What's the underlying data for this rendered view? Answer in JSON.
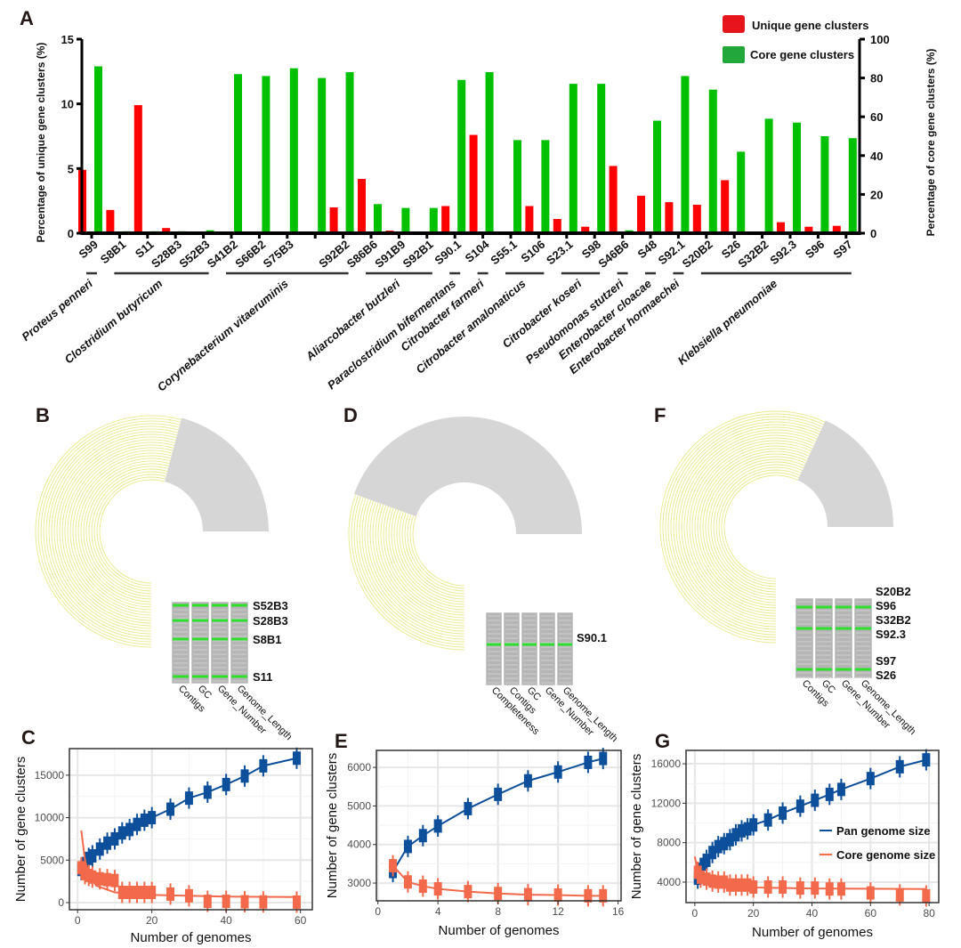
{
  "panel_letters": {
    "A": "A",
    "B": "B",
    "C": "C",
    "D": "D",
    "E": "E",
    "F": "F",
    "G": "G"
  },
  "chart_data": [
    {
      "panel": "A",
      "type": "bar",
      "categories": [
        "S99",
        "S8B1",
        "S11",
        "S28B3",
        "S52B3",
        "S41B2",
        "S66B2",
        "S75B3",
        "",
        "S92B2",
        "S86B6",
        "S91B9",
        "S92B1",
        "S90.1",
        "S104",
        "S55.1",
        "S106",
        "S23.1",
        "S98",
        "S46B6",
        "S48",
        "S92.1",
        "S20B2",
        "S26",
        "S32B2",
        "S92.3",
        "S96",
        "S97"
      ],
      "series": [
        {
          "name": "Unique gene clusters",
          "axis": "left",
          "color": "#ff0000",
          "values": [
            4.9,
            1.8,
            9.9,
            0.4,
            0,
            0.1,
            0,
            0,
            0,
            2.0,
            4.2,
            0.2,
            0.1,
            2.1,
            7.6,
            0.05,
            2.1,
            1.1,
            0.5,
            5.2,
            2.9,
            2.4,
            2.2,
            4.1,
            0,
            0.85,
            0.5,
            0.57
          ]
        },
        {
          "name": "Core gene clusters",
          "axis": "right",
          "color": "#00c000",
          "values": [
            86,
            1,
            1,
            1,
            1.5,
            82,
            81,
            85,
            80,
            83,
            15,
            13,
            13,
            79,
            83,
            48,
            48,
            77,
            77,
            1.5,
            58,
            81,
            74,
            42,
            59,
            57,
            50,
            49
          ]
        }
      ],
      "ylabel": "Percentage of unique gene clusters (%)",
      "y2label": "Percentage of core gene clusters (%)",
      "ylim": [
        0,
        15
      ],
      "yticks": [
        0,
        5,
        10,
        15
      ],
      "y2lim": [
        0,
        100
      ],
      "y2ticks": [
        0,
        20,
        40,
        60,
        80,
        100
      ],
      "legend_position": "top-right",
      "species_groups": [
        {
          "name": "Proteus penneri",
          "from": 0,
          "to": 0
        },
        {
          "name": "Clostridium butyricum",
          "from": 1,
          "to": 4
        },
        {
          "name": "Corynebacterium vitaeruminis",
          "from": 5,
          "to": 9
        },
        {
          "name": "Aliarcobacter butzleri",
          "from": 10,
          "to": 12
        },
        {
          "name": "Paraclostridium bifermentans",
          "from": 13,
          "to": 13
        },
        {
          "name": "Citrobacter farmeri",
          "from": 14,
          "to": 14
        },
        {
          "name": "Citrobacter amalonaticus",
          "from": 15,
          "to": 16
        },
        {
          "name": "Citrobacter koseri",
          "from": 17,
          "to": 18
        },
        {
          "name": "Pseudomonas stutzeri",
          "from": 19,
          "to": 19
        },
        {
          "name": "Enterobacter cloacae",
          "from": 20,
          "to": 20
        },
        {
          "name": "Enterobacter hormaechei",
          "from": 21,
          "to": 21
        },
        {
          "name": "Klebsiella pneumoniae",
          "from": 22,
          "to": 27
        }
      ]
    },
    {
      "panel": "C",
      "type": "line",
      "xlabel": "Number of genomes",
      "ylabel": "Number of gene clusters",
      "xlim": [
        -2.2,
        63.2
      ],
      "ylim": [
        -840,
        18130
      ],
      "xticks": [
        0,
        20,
        40,
        60
      ],
      "yticks": [
        0,
        5000,
        10000,
        15000
      ],
      "grid": true,
      "series": [
        {
          "name": "Pan genome size",
          "color": "#0d4f9a",
          "x": [
            1,
            2,
            3,
            4,
            6,
            8,
            10,
            12,
            14,
            16,
            18,
            20,
            25,
            30,
            35,
            40,
            45,
            50,
            59
          ],
          "y": [
            3900,
            4600,
            5200,
            5500,
            6300,
            7000,
            7500,
            8200,
            8600,
            9200,
            9700,
            10000,
            11000,
            12300,
            13000,
            13900,
            14900,
            16100,
            17000
          ]
        },
        {
          "name": "Core genome size",
          "color": "#f26a4b",
          "x": [
            1,
            2,
            3,
            4,
            6,
            8,
            10,
            12,
            14,
            16,
            18,
            20,
            25,
            30,
            35,
            40,
            45,
            50,
            59
          ],
          "y": [
            4100,
            3400,
            3200,
            3000,
            2800,
            2700,
            2600,
            1200,
            1200,
            1200,
            1200,
            1200,
            1000,
            800,
            150,
            150,
            100,
            80,
            60
          ],
          "fit_x": [
            1,
            2,
            3,
            5,
            10,
            20,
            40,
            59
          ],
          "fit_y": [
            8500,
            5000,
            3300,
            2000,
            1200,
            900,
            700,
            650
          ]
        }
      ]
    },
    {
      "panel": "E",
      "type": "line",
      "xlabel": "Number of genomes",
      "ylabel": "Number of gene clusters",
      "xlim": [
        -0.1,
        16.2
      ],
      "ylim": [
        2540,
        6440
      ],
      "xticks": [
        0,
        4,
        8,
        12,
        16
      ],
      "yticks": [
        3000,
        4000,
        5000,
        6000
      ],
      "grid": true,
      "series": [
        {
          "name": "Pan genome size",
          "color": "#0d4f9a",
          "x": [
            1,
            2,
            3,
            4,
            6,
            8,
            10,
            12,
            14,
            15
          ],
          "y": [
            3300,
            3950,
            4230,
            4480,
            4930,
            5300,
            5650,
            5880,
            6130,
            6230
          ]
        },
        {
          "name": "Core genome size",
          "color": "#f26a4b",
          "x": [
            1,
            2,
            3,
            4,
            6,
            8,
            10,
            12,
            14,
            15
          ],
          "y": [
            3450,
            3030,
            2920,
            2850,
            2780,
            2730,
            2700,
            2690,
            2670,
            2670
          ]
        }
      ]
    },
    {
      "panel": "G",
      "type": "line",
      "xlabel": "Number of genomes",
      "ylabel": "Number of gene clusters",
      "xlim": [
        -3,
        83.3
      ],
      "ylim": [
        1920,
        17360
      ],
      "xticks": [
        0,
        20,
        40,
        60,
        80
      ],
      "yticks": [
        4000,
        8000,
        12000,
        16000
      ],
      "grid": true,
      "legend_position": "right",
      "series": [
        {
          "name": "Pan genome size",
          "color": "#0d4f9a",
          "x": [
            1,
            2,
            3,
            4,
            6,
            8,
            10,
            12,
            14,
            16,
            18,
            20,
            25,
            30,
            36,
            41,
            46,
            50,
            60,
            70,
            79
          ],
          "y": [
            4400,
            5300,
            5800,
            6200,
            7000,
            7600,
            7900,
            8300,
            8800,
            9200,
            9400,
            9800,
            10300,
            11000,
            11700,
            12300,
            12900,
            13400,
            14500,
            15700,
            16400
          ]
        },
        {
          "name": "Core genome size",
          "color": "#f26a4b",
          "x": [
            1,
            2,
            4,
            6,
            8,
            10,
            12,
            14,
            16,
            18,
            20,
            25,
            30,
            36,
            41,
            46,
            50,
            60,
            70,
            79
          ],
          "y": [
            5000,
            4500,
            4300,
            4100,
            4000,
            4000,
            3700,
            3700,
            3700,
            3700,
            3500,
            3500,
            3500,
            3400,
            3400,
            3300,
            3300,
            2900,
            2700,
            2600
          ],
          "fit_x": [
            0,
            1,
            3,
            8,
            20,
            40,
            79
          ],
          "fit_y": [
            6600,
            5000,
            4200,
            3800,
            3450,
            3350,
            3300
          ]
        }
      ]
    }
  ],
  "ring_panels": [
    {
      "panel": "B",
      "row_labels": [
        "S52B3",
        "S28B3",
        "S8B1",
        "S11"
      ],
      "columns": [
        "Contigs",
        "GC",
        "Gene_Number",
        "Genome_Length"
      ]
    },
    {
      "panel": "D",
      "row_labels": [
        "S90.1"
      ],
      "columns": [
        "Completeness",
        "Contigs",
        "GC",
        "Gene_Number",
        "Genome_Length"
      ]
    },
    {
      "panel": "F",
      "row_labels": [
        "S20B2",
        "S96",
        "S32B2",
        "S92.3",
        "S97",
        "S26"
      ],
      "columns": [
        "Contigs",
        "GC",
        "Gene_Number",
        "Genome_Length"
      ]
    }
  ]
}
